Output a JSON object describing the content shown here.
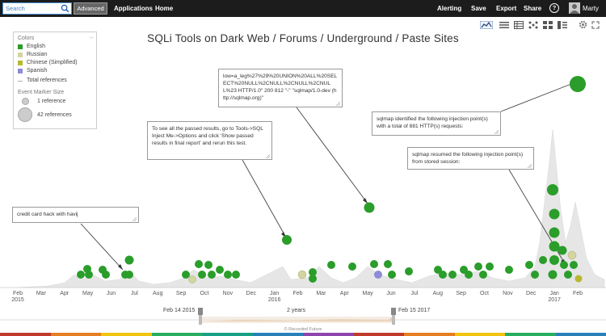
{
  "topbar": {
    "search_placeholder": "Search",
    "advanced_label": "Advanced",
    "nav": [
      "Applications",
      "Home"
    ],
    "alerting_label": "Alerting",
    "save_label": "Save",
    "export_label": "Export",
    "share_label": "Share",
    "help_label": "?",
    "user_name": "Marty"
  },
  "chart_data": {
    "type": "scatter",
    "title": "SQLi Tools on Dark Web / Forums / Underground / Paste Sites",
    "legend": {
      "colors_heading": "Colors",
      "series": [
        {
          "name": "English",
          "color": "#2a9d2a"
        },
        {
          "name": "Russian",
          "color": "#d4d4a0"
        },
        {
          "name": "Chinese (Simplified)",
          "color": "#b8b830"
        },
        {
          "name": "Spanish",
          "color": "#8c8cd8"
        }
      ],
      "total_label": "Total references",
      "size_heading": "Event Marker Size",
      "size_small": "1 reference",
      "size_large": "42 references",
      "placement": "top-left"
    },
    "x_ticks": [
      {
        "label": "Feb",
        "sub": "2015"
      },
      {
        "label": "Mar",
        "sub": ""
      },
      {
        "label": "Apr",
        "sub": ""
      },
      {
        "label": "May",
        "sub": ""
      },
      {
        "label": "Jun",
        "sub": ""
      },
      {
        "label": "Jul",
        "sub": ""
      },
      {
        "label": "Aug",
        "sub": ""
      },
      {
        "label": "Sep",
        "sub": ""
      },
      {
        "label": "Oct",
        "sub": ""
      },
      {
        "label": "Nov",
        "sub": ""
      },
      {
        "label": "Dec",
        "sub": ""
      },
      {
        "label": "Jan",
        "sub": "2016"
      },
      {
        "label": "Feb",
        "sub": ""
      },
      {
        "label": "Mar",
        "sub": ""
      },
      {
        "label": "Apr",
        "sub": ""
      },
      {
        "label": "May",
        "sub": ""
      },
      {
        "label": "Jun",
        "sub": ""
      },
      {
        "label": "Jul",
        "sub": ""
      },
      {
        "label": "Aug",
        "sub": ""
      },
      {
        "label": "Sep",
        "sub": ""
      },
      {
        "label": "Oct",
        "sub": ""
      },
      {
        "label": "Nov",
        "sub": ""
      },
      {
        "label": "Dec",
        "sub": ""
      },
      {
        "label": "Jan",
        "sub": "2017"
      },
      {
        "label": "Feb",
        "sub": ""
      }
    ],
    "range": {
      "start": "Feb 14 2015",
      "duration": "2 years",
      "end": "Feb 15 2017"
    },
    "callouts": [
      {
        "text": "credit card hack with havij"
      },
      {
        "text": "To see all the passed results, go to Tools->SQL Inject Me->Options and click 'Show passed results in final report' and rerun this test."
      },
      {
        "text": "low=a_leg%27%29%20UNION%20ALL%20SELECT%20NULL%2CNULL%2CNULL%2CNULL%23 HTTP/1.0\" 200 812 \"-\" \"sqlmap/1.0-dev (http://sqlmap.org)\""
      },
      {
        "text": "sqlmap identified the following injection point(s) with a total of 881 HTTP(s) requests:"
      },
      {
        "text": "sqlmap resumed the following injection point(s) from stored session:"
      }
    ]
  },
  "footer": "© Recorded Future",
  "colors": {
    "english": "#2a9d2a",
    "russian": "#d4d4a0",
    "chinese": "#b8b830",
    "spanish": "#8c8cd8",
    "topbar": "#1c1c1c"
  }
}
